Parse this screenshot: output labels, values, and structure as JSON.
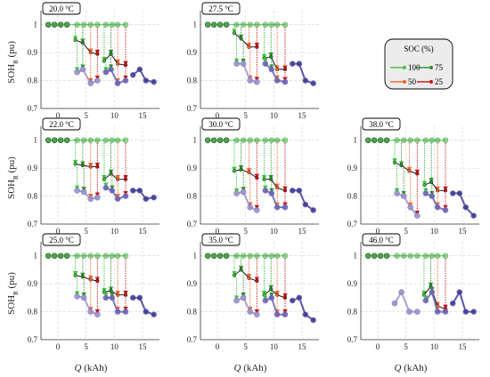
{
  "chart_data": {
    "type": "line",
    "y_axis_label": "SOH_R (pu)",
    "x_axis_label": "Q (kAh)",
    "xlim": [
      -3,
      18
    ],
    "ylim": [
      0.7,
      1.05
    ],
    "xticks": [
      0,
      5,
      10,
      15
    ],
    "yticks": [
      0.7,
      0.8,
      0.9,
      1.0
    ],
    "ytick_labels": [
      "0.7",
      "0.8",
      "0.9",
      "1"
    ],
    "grid": true,
    "legend": {
      "title": "SOC (%)",
      "entries": [
        {
          "label": "100",
          "color": "#3cc43c"
        },
        {
          "label": "75",
          "color": "#2a8f2a"
        },
        {
          "label": "50",
          "color": "#f2622a"
        },
        {
          "label": "25",
          "color": "#c41414"
        }
      ],
      "placement": "top-right"
    },
    "colors": {
      "segment_1_light": "#b8aed8",
      "segment_2": "#9c92cc",
      "segment_3": "#6a62b4",
      "segment_4_dark": "#3d3a93",
      "reference_line": "#000000",
      "soc_100": "#3cc43c",
      "soc_75": "#2a8f2a",
      "soc_50": "#f2622a",
      "soc_25": "#c41414"
    },
    "panels": [
      {
        "id": "20C",
        "temperature": "20.0 °C",
        "row": 0,
        "col": 0,
        "cycles": [
          {
            "ref": [
              [
                3.1,
                0.945
              ],
              [
                4.4,
                0.935
              ],
              [
                5.8,
                0.9
              ],
              [
                7.0,
                0.895
              ]
            ],
            "low": [
              [
                3.4,
                0.83
              ],
              [
                4.4,
                0.84
              ],
              [
                5.8,
                0.79
              ],
              [
                7.0,
                0.8
              ]
            ]
          },
          {
            "ref": [
              [
                8.2,
                0.87
              ],
              [
                9.4,
                0.895
              ],
              [
                10.6,
                0.86
              ],
              [
                12.0,
                0.855
              ]
            ],
            "low": [
              [
                8.5,
                0.83
              ],
              [
                9.4,
                0.84
              ],
              [
                10.6,
                0.79
              ],
              [
                12.0,
                0.8
              ]
            ]
          },
          {
            "ref": [],
            "low": [
              [
                13.3,
                0.82
              ],
              [
                14.5,
                0.84
              ],
              [
                15.6,
                0.8
              ],
              [
                17.0,
                0.795
              ]
            ]
          }
        ]
      },
      {
        "id": "27C",
        "temperature": "27.5 °C",
        "row": 0,
        "col": 1,
        "cycles": [
          {
            "ref": [
              [
                3.0,
                0.97
              ],
              [
                4.2,
                0.95
              ],
              [
                5.6,
                0.92
              ],
              [
                7.0,
                0.92
              ]
            ],
            "low": [
              [
                3.4,
                0.86
              ],
              [
                4.6,
                0.86
              ],
              [
                5.8,
                0.8
              ],
              [
                7.0,
                0.795
              ]
            ]
          },
          {
            "ref": [
              [
                8.3,
                0.88
              ],
              [
                9.5,
                0.885
              ],
              [
                10.6,
                0.84
              ],
              [
                12.0,
                0.84
              ]
            ],
            "low": [
              [
                8.5,
                0.86
              ],
              [
                9.6,
                0.84
              ],
              [
                10.6,
                0.8
              ],
              [
                12.0,
                0.795
              ]
            ]
          },
          {
            "ref": [],
            "low": [
              [
                13.3,
                0.86
              ],
              [
                14.5,
                0.86
              ],
              [
                15.6,
                0.8
              ],
              [
                17.0,
                0.79
              ]
            ]
          }
        ]
      },
      {
        "id": "22C",
        "temperature": "22.0 °C",
        "row": 1,
        "col": 0,
        "cycles": [
          {
            "ref": [
              [
                3.1,
                0.915
              ],
              [
                4.4,
                0.91
              ],
              [
                5.8,
                0.905
              ],
              [
                7.0,
                0.905
              ]
            ],
            "low": [
              [
                3.4,
                0.82
              ],
              [
                4.6,
                0.815
              ],
              [
                5.8,
                0.79
              ],
              [
                7.0,
                0.795
              ]
            ]
          },
          {
            "ref": [
              [
                8.2,
                0.86
              ],
              [
                9.4,
                0.88
              ],
              [
                10.6,
                0.86
              ],
              [
                12.0,
                0.86
              ]
            ],
            "low": [
              [
                8.5,
                0.83
              ],
              [
                9.6,
                0.82
              ],
              [
                10.6,
                0.79
              ],
              [
                12.0,
                0.8
              ]
            ]
          },
          {
            "ref": [],
            "low": [
              [
                13.3,
                0.82
              ],
              [
                14.5,
                0.82
              ],
              [
                15.6,
                0.79
              ],
              [
                17.0,
                0.795
              ]
            ]
          }
        ]
      },
      {
        "id": "30C",
        "temperature": "30.0 °C",
        "row": 1,
        "col": 1,
        "cycles": [
          {
            "ref": [
              [
                3.0,
                0.89
              ],
              [
                4.2,
                0.895
              ],
              [
                5.6,
                0.885
              ],
              [
                7.0,
                0.865
              ]
            ],
            "low": [
              [
                3.4,
                0.81
              ],
              [
                4.6,
                0.815
              ],
              [
                5.8,
                0.76
              ],
              [
                7.0,
                0.75
              ]
            ]
          },
          {
            "ref": [
              [
                8.3,
                0.86
              ],
              [
                9.5,
                0.86
              ],
              [
                10.6,
                0.83
              ],
              [
                12.0,
                0.82
              ]
            ],
            "low": [
              [
                8.5,
                0.82
              ],
              [
                9.6,
                0.81
              ],
              [
                10.6,
                0.76
              ],
              [
                12.0,
                0.76
              ]
            ]
          },
          {
            "ref": [],
            "low": [
              [
                13.3,
                0.82
              ],
              [
                14.5,
                0.82
              ],
              [
                15.6,
                0.77
              ],
              [
                17.0,
                0.75
              ]
            ]
          }
        ]
      },
      {
        "id": "38C",
        "temperature": "38.0 °C",
        "row": 1,
        "col": 2,
        "cycles": [
          {
            "ref": [
              [
                3.0,
                0.92
              ],
              [
                4.2,
                0.91
              ],
              [
                5.6,
                0.89
              ],
              [
                7.0,
                0.88
              ]
            ],
            "low": [
              [
                3.4,
                0.81
              ],
              [
                4.6,
                0.8
              ],
              [
                5.8,
                0.76
              ],
              [
                7.0,
                0.73
              ]
            ]
          },
          {
            "ref": [
              [
                8.3,
                0.84
              ],
              [
                9.5,
                0.85
              ],
              [
                10.6,
                0.82
              ],
              [
                12.0,
                0.82
              ]
            ],
            "low": [
              [
                8.5,
                0.81
              ],
              [
                9.6,
                0.8
              ],
              [
                10.6,
                0.76
              ],
              [
                12.0,
                0.75
              ]
            ]
          },
          {
            "ref": [],
            "low": [
              [
                13.3,
                0.81
              ],
              [
                14.5,
                0.81
              ],
              [
                15.6,
                0.76
              ],
              [
                17.0,
                0.73
              ]
            ]
          }
        ]
      },
      {
        "id": "25C",
        "temperature": "25.0 °C",
        "row": 2,
        "col": 0,
        "cycles": [
          {
            "ref": [
              [
                3.1,
                0.93
              ],
              [
                4.4,
                0.925
              ],
              [
                5.8,
                0.915
              ],
              [
                7.0,
                0.91
              ]
            ],
            "low": [
              [
                3.4,
                0.855
              ],
              [
                4.6,
                0.85
              ],
              [
                5.8,
                0.8
              ],
              [
                7.0,
                0.79
              ]
            ]
          },
          {
            "ref": [
              [
                8.2,
                0.87
              ],
              [
                9.4,
                0.875
              ],
              [
                10.6,
                0.86
              ],
              [
                12.0,
                0.86
              ]
            ],
            "low": [
              [
                8.5,
                0.85
              ],
              [
                9.6,
                0.85
              ],
              [
                10.6,
                0.8
              ],
              [
                12.0,
                0.8
              ]
            ]
          },
          {
            "ref": [],
            "low": [
              [
                13.3,
                0.85
              ],
              [
                14.5,
                0.85
              ],
              [
                15.6,
                0.8
              ],
              [
                17.0,
                0.79
              ]
            ]
          }
        ]
      },
      {
        "id": "35C",
        "temperature": "35.0 °C",
        "row": 2,
        "col": 1,
        "cycles": [
          {
            "ref": [
              [
                3.0,
                0.93
              ],
              [
                4.2,
                0.95
              ],
              [
                5.6,
                0.92
              ],
              [
                7.0,
                0.91
              ]
            ],
            "low": [
              [
                3.4,
                0.84
              ],
              [
                4.6,
                0.85
              ],
              [
                5.8,
                0.8
              ],
              [
                7.0,
                0.79
              ]
            ]
          },
          {
            "ref": [
              [
                8.3,
                0.86
              ],
              [
                9.5,
                0.88
              ],
              [
                10.6,
                0.86
              ],
              [
                12.0,
                0.85
              ]
            ],
            "low": [
              [
                8.5,
                0.84
              ],
              [
                9.6,
                0.85
              ],
              [
                10.6,
                0.79
              ],
              [
                12.0,
                0.79
              ]
            ]
          },
          {
            "ref": [],
            "low": [
              [
                13.3,
                0.84
              ],
              [
                14.5,
                0.85
              ],
              [
                15.6,
                0.79
              ],
              [
                17.0,
                0.77
              ]
            ]
          }
        ]
      },
      {
        "id": "46C",
        "temperature": "46.0 °C",
        "row": 2,
        "col": 2,
        "cycles": [
          {
            "ref": [],
            "low": [
              [
                3.0,
                0.83
              ],
              [
                4.2,
                0.87
              ],
              [
                5.6,
                0.8
              ],
              [
                7.0,
                0.8
              ]
            ]
          },
          {
            "ref": [
              [
                8.2,
                0.86
              ],
              [
                9.4,
                0.89
              ],
              [
                10.6,
                0.82
              ],
              [
                12.0,
                0.81
              ]
            ],
            "low": [
              [
                8.5,
                0.84
              ],
              [
                9.6,
                0.87
              ],
              [
                10.6,
                0.8
              ],
              [
                12.0,
                0.8
              ]
            ]
          },
          {
            "ref": [],
            "low": [
              [
                13.3,
                0.83
              ],
              [
                14.5,
                0.87
              ],
              [
                15.6,
                0.8
              ],
              [
                17.0,
                0.8
              ]
            ]
          }
        ]
      }
    ],
    "bol_points": [
      [
        -1.7,
        1.0
      ],
      [
        -0.6,
        1.0
      ],
      [
        0.5,
        1.0
      ],
      [
        1.6,
        1.0
      ],
      [
        3.4,
        1.0
      ],
      [
        4.6,
        1.0
      ],
      [
        5.8,
        1.0
      ],
      [
        7.0,
        1.0
      ],
      [
        8.5,
        1.0
      ],
      [
        9.6,
        1.0
      ],
      [
        10.6,
        1.0
      ],
      [
        12.0,
        1.0
      ]
    ]
  }
}
